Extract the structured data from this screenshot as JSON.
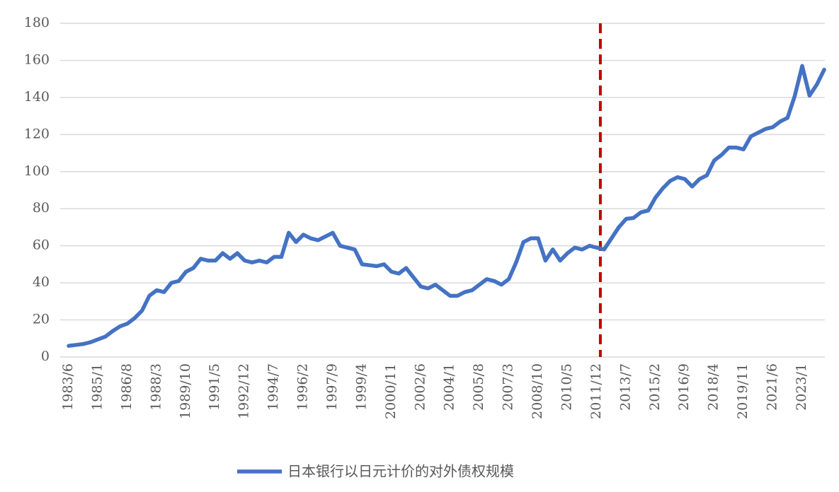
{
  "chart_data": {
    "type": "line",
    "categories": [
      "1983/6",
      null,
      null,
      null,
      "1985/1",
      null,
      null,
      null,
      "1986/8",
      null,
      null,
      null,
      "1988/3",
      null,
      null,
      null,
      "1989/10",
      null,
      null,
      null,
      "1991/5",
      null,
      null,
      null,
      "1992/12",
      null,
      null,
      null,
      "1994/7",
      null,
      null,
      null,
      "1996/2",
      null,
      null,
      null,
      "1997/9",
      null,
      null,
      null,
      "1999/4",
      null,
      null,
      null,
      "2000/11",
      null,
      null,
      null,
      "2002/6",
      null,
      null,
      null,
      "2004/1",
      null,
      null,
      null,
      "2005/8",
      null,
      null,
      null,
      "2007/3",
      null,
      null,
      null,
      "2008/10",
      null,
      null,
      null,
      "2010/5",
      null,
      null,
      null,
      "2011/12",
      null,
      null,
      null,
      "2013/7",
      null,
      null,
      null,
      "2015/2",
      null,
      null,
      null,
      "2016/9",
      null,
      null,
      null,
      "2018/4",
      null,
      null,
      null,
      "2019/11",
      null,
      null,
      null,
      "2021/6",
      null,
      null,
      null,
      "2023/1",
      null,
      null,
      null
    ],
    "series": [
      {
        "name": "日本银行以日元计价的对外债权规模",
        "color": "#4472c4",
        "values": [
          6,
          6.5,
          7,
          8,
          9.5,
          11,
          14,
          16.5,
          18,
          21,
          25,
          33,
          36,
          35,
          40,
          41,
          46,
          48,
          53,
          52,
          52,
          56,
          53,
          56,
          52,
          51,
          52,
          51,
          54,
          54,
          67,
          62,
          66,
          64,
          63,
          65,
          67,
          60,
          59,
          58,
          50,
          49.5,
          49,
          50,
          46,
          45,
          48,
          43,
          38,
          37,
          39,
          36,
          33,
          33,
          35,
          36,
          39,
          42,
          41,
          39,
          42,
          51,
          62,
          64,
          64,
          52,
          58,
          52,
          56,
          59,
          58,
          60,
          59,
          58,
          64,
          70,
          74.5,
          75,
          78,
          79,
          86,
          91,
          95,
          97,
          96,
          92,
          96,
          98,
          106,
          109,
          113,
          113,
          112,
          119,
          121,
          123,
          124,
          127,
          129,
          141,
          157,
          141,
          147,
          155
        ]
      }
    ],
    "ylim": [
      0,
      180
    ],
    "yticks": [
      0,
      20,
      40,
      60,
      80,
      100,
      120,
      140,
      160,
      180
    ],
    "grid": true,
    "reference_line": {
      "x": "2011/12",
      "color": "#c00000",
      "style": "dashed"
    },
    "legend": "bottom"
  }
}
